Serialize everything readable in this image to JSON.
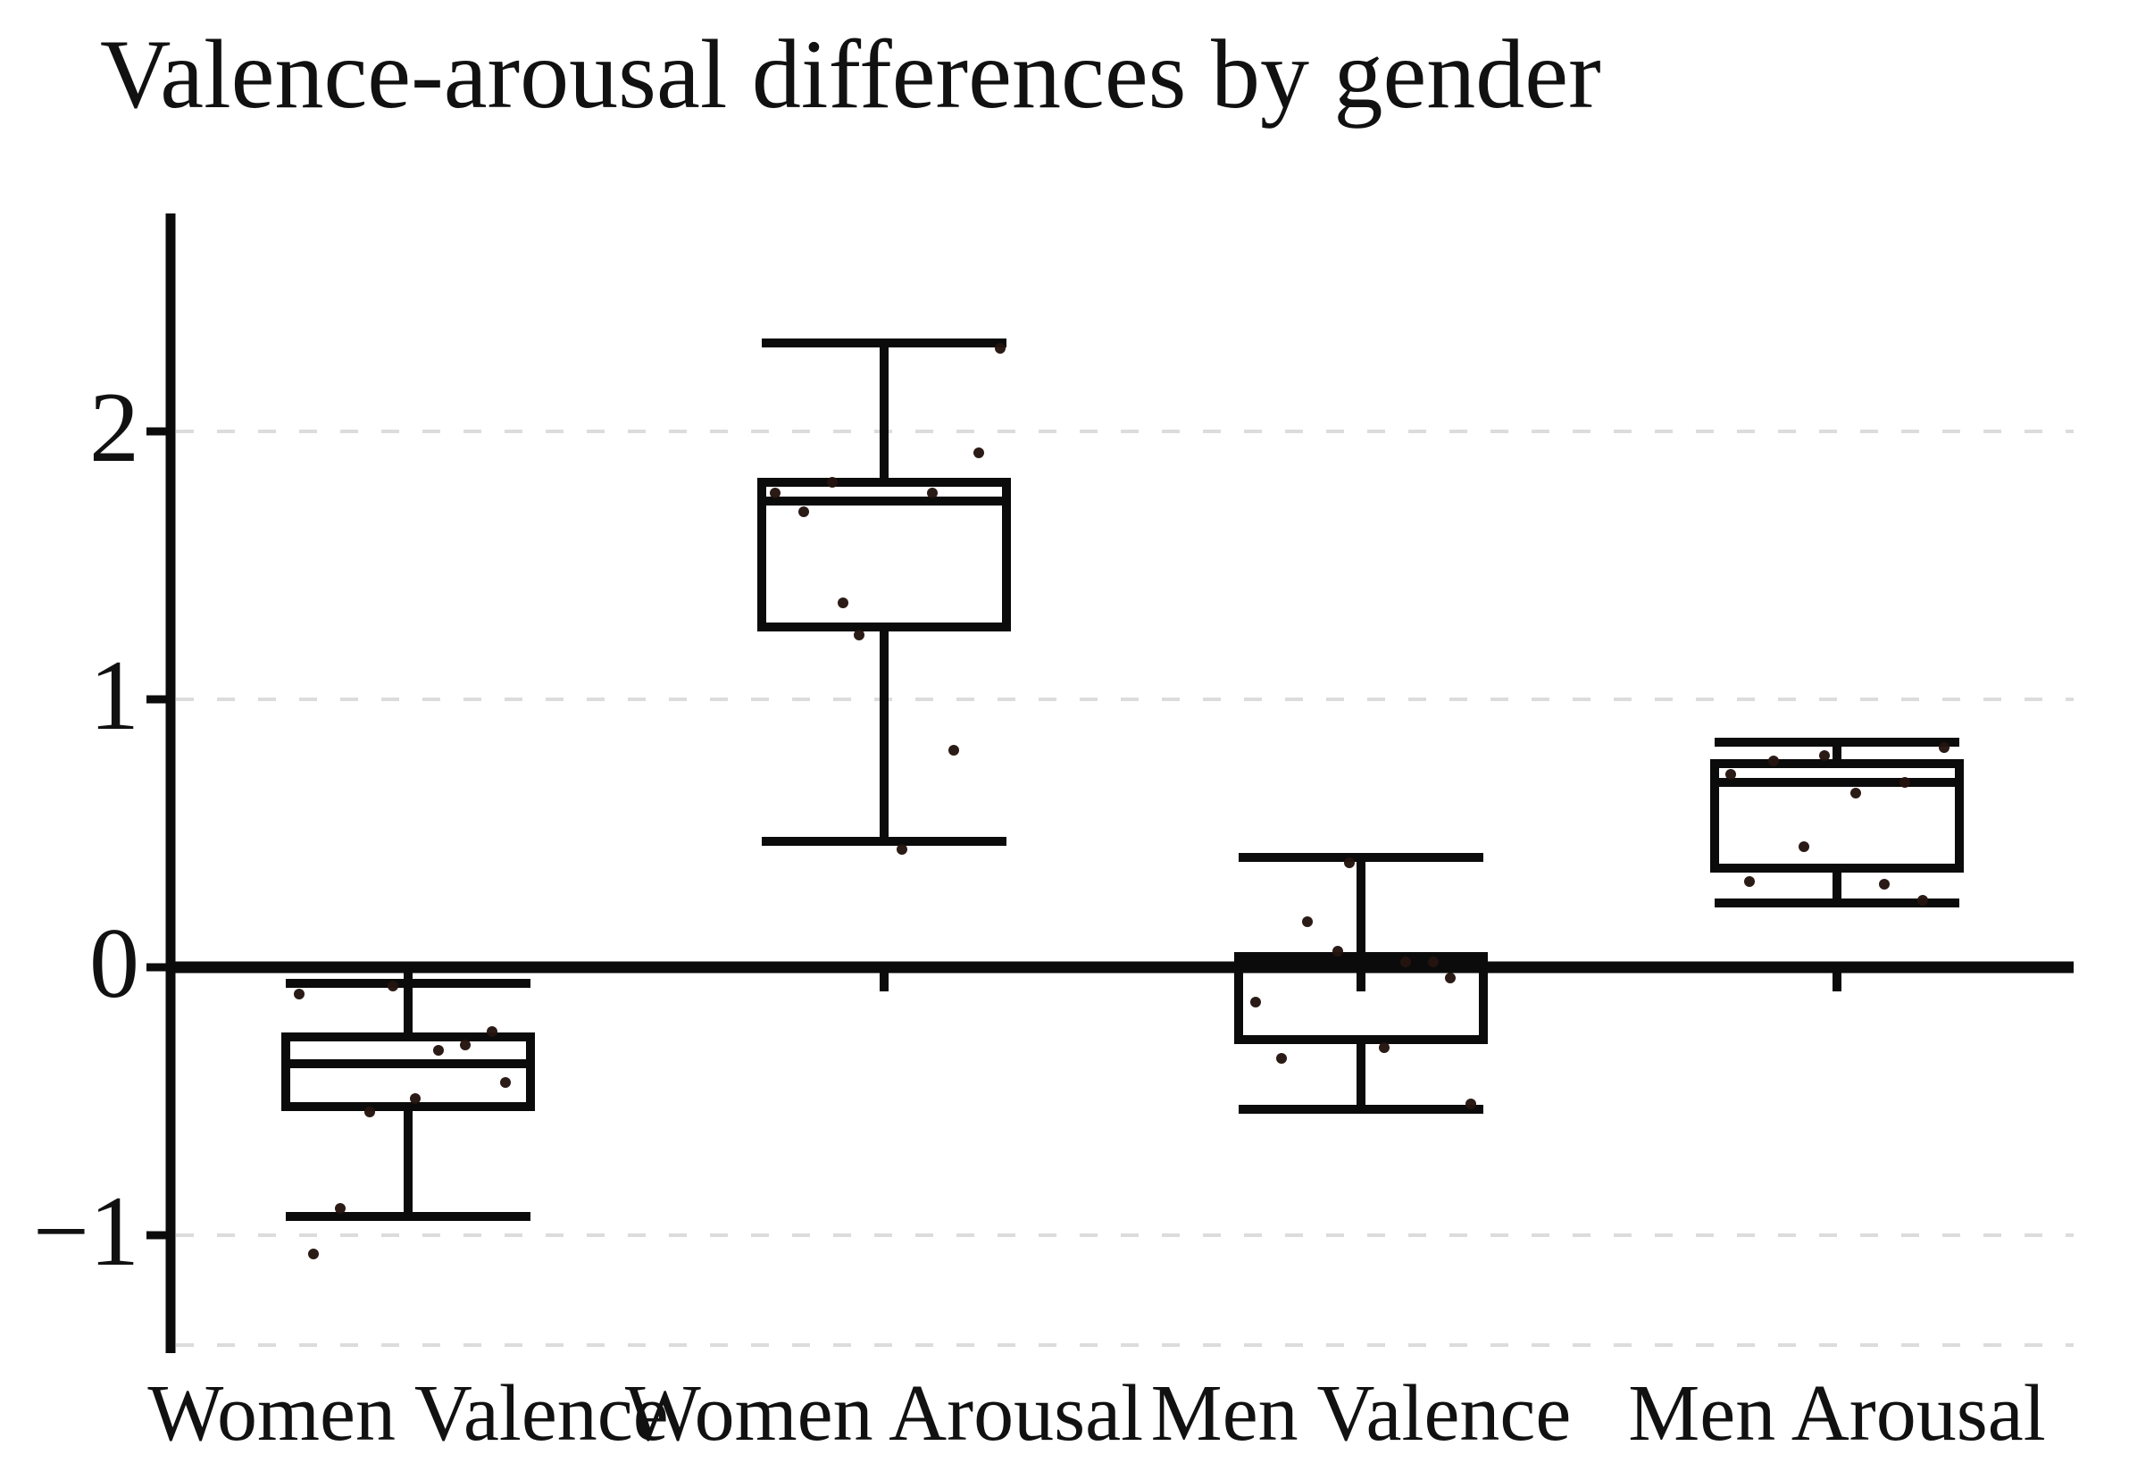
{
  "chart_data": {
    "type": "boxplot",
    "title": "Valence-arousal differences by gender",
    "categories": [
      "Women Valence",
      "Women Arousal",
      "Men Valence",
      "Men Arousal"
    ],
    "xlabel": "",
    "ylabel": "",
    "ylim": [
      -1.51,
      2.81
    ],
    "yticks": [
      {
        "value": 2,
        "label": "2"
      },
      {
        "value": 1,
        "label": "1"
      },
      {
        "value": 0,
        "label": "0"
      },
      {
        "value": -1,
        "label": "−1"
      }
    ],
    "gridlines_dashed_at": [
      2,
      1,
      -1
    ],
    "panel_bottom_dashed_at": -1.41,
    "zero_axis_line_at": 0,
    "legend": "none",
    "colors": {
      "line": "#0b0b0b",
      "box_fill": "#ffffff",
      "point": "#241410",
      "grid": "#dcdcdc",
      "text": "#111111",
      "background": "#ffffff"
    },
    "series": [
      {
        "label": "Women Valence",
        "stats": {
          "whisker_low": -0.93,
          "q1": -0.52,
          "median": -0.36,
          "q3": -0.26,
          "whisker_high": -0.06
        },
        "points": [
          {
            "dx": -122,
            "v": -0.1
          },
          {
            "dx": -17,
            "v": -0.07
          },
          {
            "dx": 94,
            "v": -0.24
          },
          {
            "dx": 64,
            "v": -0.29
          },
          {
            "dx": 34,
            "v": -0.31
          },
          {
            "dx": 109,
            "v": -0.43
          },
          {
            "dx": 8,
            "v": -0.49
          },
          {
            "dx": -43,
            "v": -0.54
          },
          {
            "dx": -76,
            "v": -0.9
          },
          {
            "dx": -106,
            "v": -1.07
          }
        ]
      },
      {
        "label": "Women Arousal",
        "stats": {
          "whisker_low": 0.47,
          "q1": 1.27,
          "median": 1.74,
          "q3": 1.81,
          "whisker_high": 2.33
        },
        "points": [
          {
            "dx": 130,
            "v": 2.31
          },
          {
            "dx": 106,
            "v": 1.92
          },
          {
            "dx": -58,
            "v": 1.81
          },
          {
            "dx": -122,
            "v": 1.77
          },
          {
            "dx": 54,
            "v": 1.77
          },
          {
            "dx": -90,
            "v": 1.7
          },
          {
            "dx": -46,
            "v": 1.36
          },
          {
            "dx": -28,
            "v": 1.24
          },
          {
            "dx": 78,
            "v": 0.81
          },
          {
            "dx": 20,
            "v": 0.44
          }
        ]
      },
      {
        "label": "Men Valence",
        "stats": {
          "whisker_low": -0.53,
          "q1": -0.27,
          "median": 0.01,
          "q3": 0.04,
          "whisker_high": 0.41
        },
        "points": [
          {
            "dx": -13,
            "v": 0.39
          },
          {
            "dx": -60,
            "v": 0.17
          },
          {
            "dx": -26,
            "v": 0.06
          },
          {
            "dx": 50,
            "v": 0.02
          },
          {
            "dx": 81,
            "v": 0.02
          },
          {
            "dx": 100,
            "v": -0.04
          },
          {
            "dx": -118,
            "v": -0.13
          },
          {
            "dx": 26,
            "v": -0.3
          },
          {
            "dx": -89,
            "v": -0.34
          },
          {
            "dx": 123,
            "v": -0.51
          }
        ]
      },
      {
        "label": "Men Arousal",
        "stats": {
          "whisker_low": 0.24,
          "q1": 0.37,
          "median": 0.69,
          "q3": 0.76,
          "whisker_high": 0.84
        },
        "points": [
          {
            "dx": 120,
            "v": 0.82
          },
          {
            "dx": -14,
            "v": 0.79
          },
          {
            "dx": -71,
            "v": 0.77
          },
          {
            "dx": -119,
            "v": 0.72
          },
          {
            "dx": 76,
            "v": 0.69
          },
          {
            "dx": 21,
            "v": 0.65
          },
          {
            "dx": -37,
            "v": 0.45
          },
          {
            "dx": -98,
            "v": 0.32
          },
          {
            "dx": 53,
            "v": 0.31
          },
          {
            "dx": 96,
            "v": 0.25
          }
        ]
      }
    ]
  }
}
